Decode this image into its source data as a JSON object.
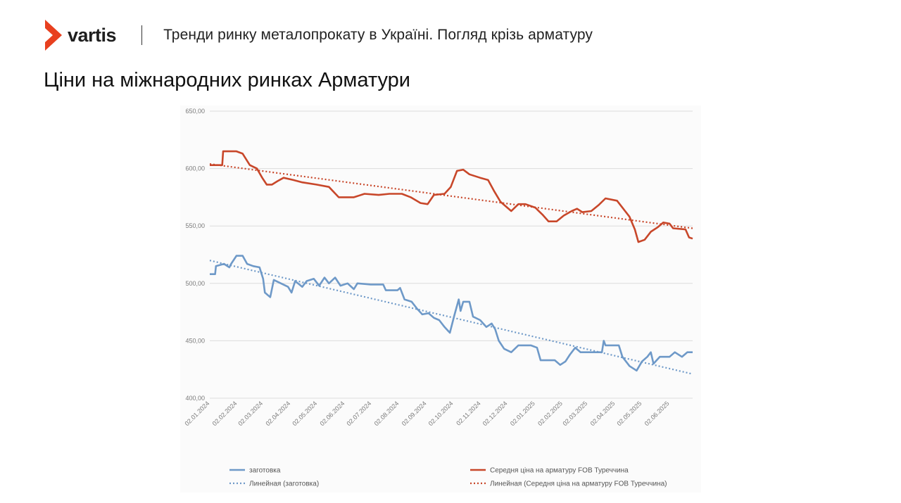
{
  "header": {
    "logo_text": "vartis",
    "title": "Тренди ринку металопрокату в Україні. Погляд крізь арматуру"
  },
  "page_title": "Ціни на міжнародних ринках Арматури",
  "colors": {
    "brand": "#e8401f",
    "series_rebar": "#c8472a",
    "series_billet": "#6e99c8",
    "grid": "#dcdcdc",
    "axis_text": "#7a7a7a"
  },
  "chart_data": {
    "type": "line",
    "title": "",
    "xlabel": "",
    "ylabel": "",
    "ylim": [
      400,
      650
    ],
    "y_ticks": [
      "400,00",
      "450,00",
      "500,00",
      "550,00",
      "600,00",
      "650,00"
    ],
    "x_range": [
      "2024-01-02",
      "2025-06-28"
    ],
    "x_ticks": [
      "02.01.2024",
      "02.02.2024",
      "02.03.2024",
      "02.04.2024",
      "02.05.2024",
      "02.06.2024",
      "02.07.2024",
      "02.08.2024",
      "02.09.2024",
      "02.10.2024",
      "02.11.2024",
      "02.12.2024",
      "02.01.2025",
      "02.02.2025",
      "02.03.2025",
      "02.04.2025",
      "02.05.2025",
      "02.06.2025"
    ],
    "grid": true,
    "legend_position": "bottom",
    "series": [
      {
        "name": "заготовка",
        "style": "solid",
        "points": [
          [
            "2024-01-02",
            508
          ],
          [
            "2024-01-08",
            508
          ],
          [
            "2024-01-09",
            515
          ],
          [
            "2024-01-18",
            517
          ],
          [
            "2024-01-24",
            514
          ],
          [
            "2024-01-26",
            517
          ],
          [
            "2024-02-01",
            524
          ],
          [
            "2024-02-08",
            524
          ],
          [
            "2024-02-13",
            517
          ],
          [
            "2024-02-20",
            515
          ],
          [
            "2024-02-27",
            514
          ],
          [
            "2024-03-02",
            504
          ],
          [
            "2024-03-04",
            492
          ],
          [
            "2024-03-10",
            488
          ],
          [
            "2024-03-14",
            503
          ],
          [
            "2024-03-22",
            500
          ],
          [
            "2024-03-30",
            497
          ],
          [
            "2024-04-03",
            492
          ],
          [
            "2024-04-07",
            502
          ],
          [
            "2024-04-15",
            497
          ],
          [
            "2024-04-20",
            502
          ],
          [
            "2024-04-28",
            504
          ],
          [
            "2024-05-04",
            498
          ],
          [
            "2024-05-10",
            505
          ],
          [
            "2024-05-15",
            500
          ],
          [
            "2024-05-22",
            505
          ],
          [
            "2024-05-28",
            498
          ],
          [
            "2024-06-05",
            500
          ],
          [
            "2024-06-12",
            495
          ],
          [
            "2024-06-16",
            500
          ],
          [
            "2024-07-01",
            499
          ],
          [
            "2024-07-15",
            499
          ],
          [
            "2024-07-18",
            494
          ],
          [
            "2024-07-31",
            494
          ],
          [
            "2024-08-03",
            496
          ],
          [
            "2024-08-08",
            486
          ],
          [
            "2024-08-16",
            484
          ],
          [
            "2024-08-22",
            478
          ],
          [
            "2024-08-28",
            473
          ],
          [
            "2024-09-04",
            474
          ],
          [
            "2024-09-10",
            470
          ],
          [
            "2024-09-16",
            468
          ],
          [
            "2024-09-22",
            462
          ],
          [
            "2024-09-28",
            457
          ],
          [
            "2024-10-03",
            472
          ],
          [
            "2024-10-08",
            486
          ],
          [
            "2024-10-10",
            476
          ],
          [
            "2024-10-13",
            484
          ],
          [
            "2024-10-20",
            484
          ],
          [
            "2024-10-24",
            471
          ],
          [
            "2024-11-01",
            468
          ],
          [
            "2024-11-08",
            462
          ],
          [
            "2024-11-14",
            465
          ],
          [
            "2024-11-18",
            460
          ],
          [
            "2024-11-22",
            450
          ],
          [
            "2024-11-28",
            443
          ],
          [
            "2024-12-06",
            440
          ],
          [
            "2024-12-14",
            446
          ],
          [
            "2024-12-28",
            446
          ],
          [
            "2025-01-04",
            444
          ],
          [
            "2025-01-08",
            433
          ],
          [
            "2025-01-24",
            433
          ],
          [
            "2025-01-30",
            429
          ],
          [
            "2025-02-05",
            432
          ],
          [
            "2025-02-10",
            438
          ],
          [
            "2025-02-16",
            444
          ],
          [
            "2025-02-22",
            440
          ],
          [
            "2025-03-18",
            440
          ],
          [
            "2025-03-20",
            450
          ],
          [
            "2025-03-22",
            446
          ],
          [
            "2025-04-06",
            446
          ],
          [
            "2025-04-10",
            436
          ],
          [
            "2025-04-18",
            428
          ],
          [
            "2025-04-26",
            424
          ],
          [
            "2025-05-02",
            432
          ],
          [
            "2025-05-08",
            436
          ],
          [
            "2025-05-12",
            440
          ],
          [
            "2025-05-15",
            430
          ],
          [
            "2025-05-22",
            436
          ],
          [
            "2025-06-02",
            436
          ],
          [
            "2025-06-08",
            440
          ],
          [
            "2025-06-16",
            436
          ],
          [
            "2025-06-22",
            440
          ],
          [
            "2025-06-28",
            440
          ]
        ]
      },
      {
        "name": "Середня ціна на арматуру FOB Туреччина",
        "style": "solid",
        "points": [
          [
            "2024-01-02",
            603
          ],
          [
            "2024-01-16",
            603
          ],
          [
            "2024-01-17",
            615
          ],
          [
            "2024-02-01",
            615
          ],
          [
            "2024-02-08",
            613
          ],
          [
            "2024-02-16",
            603
          ],
          [
            "2024-02-24",
            600
          ],
          [
            "2024-03-01",
            592
          ],
          [
            "2024-03-06",
            586
          ],
          [
            "2024-03-12",
            586
          ],
          [
            "2024-03-18",
            589
          ],
          [
            "2024-03-25",
            592
          ],
          [
            "2024-04-05",
            590
          ],
          [
            "2024-04-15",
            588
          ],
          [
            "2024-05-01",
            586
          ],
          [
            "2024-05-15",
            584
          ],
          [
            "2024-05-26",
            575
          ],
          [
            "2024-06-12",
            575
          ],
          [
            "2024-06-24",
            578
          ],
          [
            "2024-07-10",
            577
          ],
          [
            "2024-07-22",
            578
          ],
          [
            "2024-08-05",
            578
          ],
          [
            "2024-08-15",
            575
          ],
          [
            "2024-08-26",
            570
          ],
          [
            "2024-09-03",
            569
          ],
          [
            "2024-09-10",
            577
          ],
          [
            "2024-09-22",
            578
          ],
          [
            "2024-09-29",
            584
          ],
          [
            "2024-10-06",
            598
          ],
          [
            "2024-10-13",
            599
          ],
          [
            "2024-10-20",
            595
          ],
          [
            "2024-11-01",
            592
          ],
          [
            "2024-11-10",
            590
          ],
          [
            "2024-11-17",
            580
          ],
          [
            "2024-11-24",
            571
          ],
          [
            "2024-12-06",
            563
          ],
          [
            "2024-12-14",
            569
          ],
          [
            "2024-12-22",
            569
          ],
          [
            "2025-01-02",
            566
          ],
          [
            "2025-01-10",
            560
          ],
          [
            "2025-01-17",
            554
          ],
          [
            "2025-01-26",
            554
          ],
          [
            "2025-02-03",
            559
          ],
          [
            "2025-02-12",
            563
          ],
          [
            "2025-02-18",
            565
          ],
          [
            "2025-02-24",
            562
          ],
          [
            "2025-03-06",
            563
          ],
          [
            "2025-03-14",
            568
          ],
          [
            "2025-03-22",
            574
          ],
          [
            "2025-04-04",
            572
          ],
          [
            "2025-04-10",
            566
          ],
          [
            "2025-04-18",
            558
          ],
          [
            "2025-04-24",
            547
          ],
          [
            "2025-04-28",
            536
          ],
          [
            "2025-05-05",
            538
          ],
          [
            "2025-05-12",
            545
          ],
          [
            "2025-05-20",
            549
          ],
          [
            "2025-05-26",
            553
          ],
          [
            "2025-06-02",
            552
          ],
          [
            "2025-06-06",
            548
          ],
          [
            "2025-06-20",
            547
          ],
          [
            "2025-06-24",
            540
          ],
          [
            "2025-06-28",
            539
          ]
        ]
      },
      {
        "name": "Линейная (заготовка)",
        "style": "dotted",
        "trend_of": "заготовка",
        "points": [
          [
            "2024-01-02",
            520
          ],
          [
            "2025-06-28",
            421
          ]
        ]
      },
      {
        "name": "Линейная (Середня ціна на арматуру FOB Туреччина)",
        "style": "dotted",
        "trend_of": "Середня ціна на арматуру FOB Туреччина",
        "points": [
          [
            "2024-01-02",
            604
          ],
          [
            "2025-06-28",
            548
          ]
        ]
      }
    ]
  }
}
